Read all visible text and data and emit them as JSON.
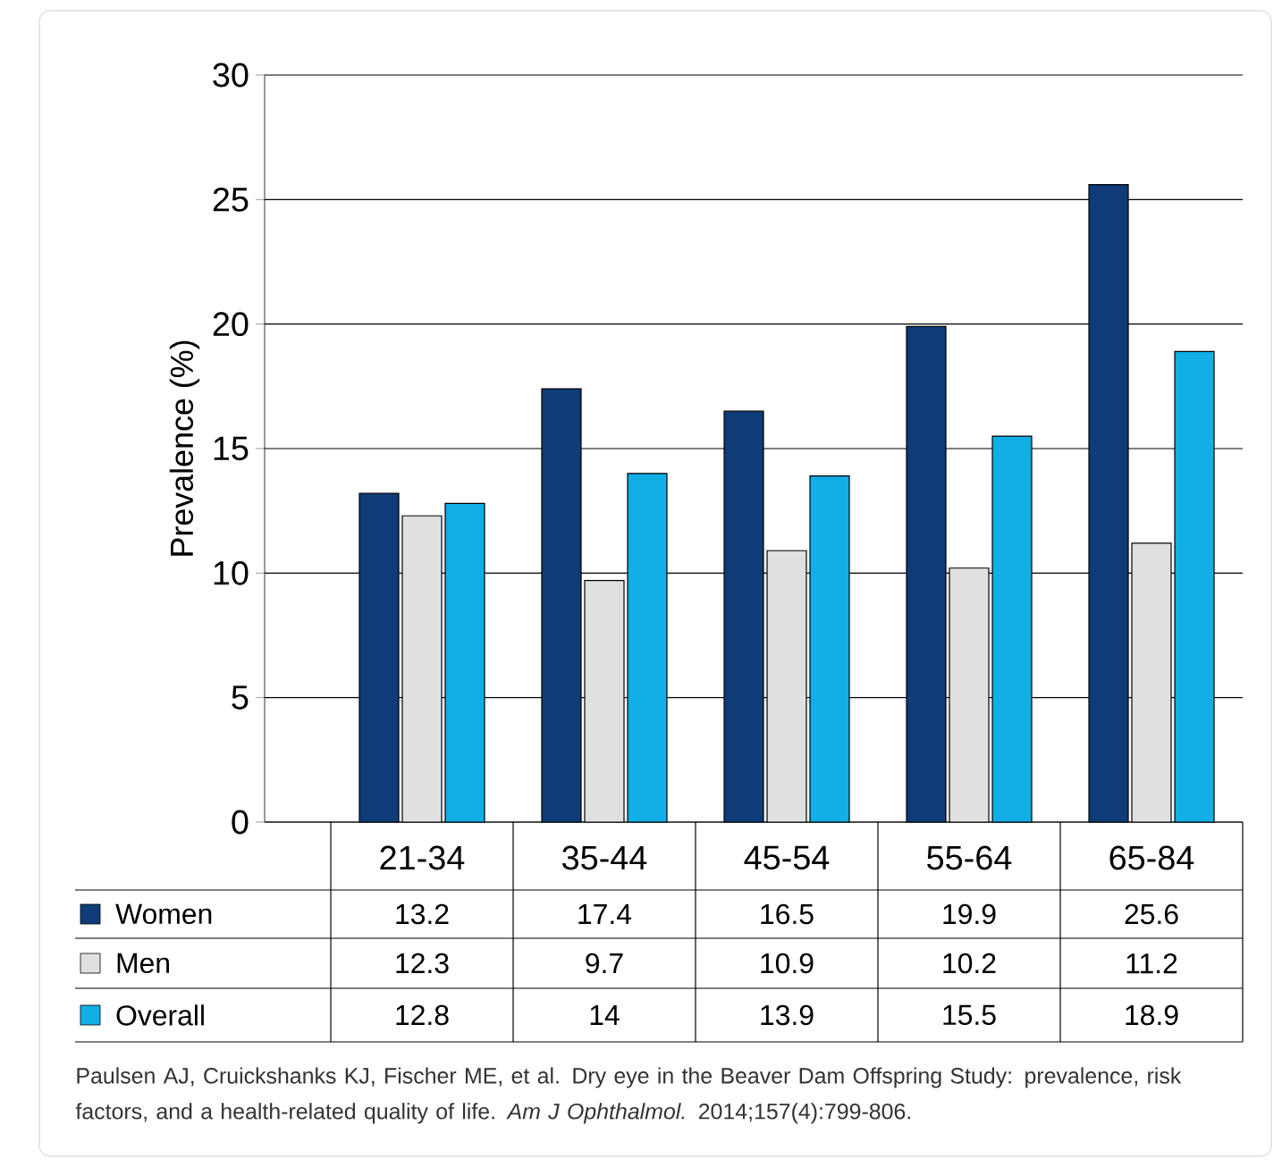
{
  "chart_data": {
    "type": "bar",
    "ylabel": "Prevalence (%)",
    "categories": [
      "21-34",
      "35-44",
      "45-54",
      "55-64",
      "65-84"
    ],
    "series": [
      {
        "name": "Women",
        "color": "#0d3c78",
        "values": [
          13.2,
          17.4,
          16.5,
          19.9,
          25.6
        ]
      },
      {
        "name": "Men",
        "color": "#e0e0e0",
        "values": [
          12.3,
          9.7,
          10.9,
          10.2,
          11.2
        ]
      },
      {
        "name": "Overall",
        "color": "#12aee6",
        "values": [
          12.8,
          14,
          13.9,
          15.5,
          18.9
        ]
      }
    ],
    "ylim": [
      0,
      30
    ],
    "yticks": [
      0,
      5,
      10,
      15,
      20,
      25,
      30
    ],
    "grid": "y",
    "legend": "bottom left",
    "data_labels": true,
    "annotations": [
      "Paulsen AJ, Cruickshanks KJ, Fischer ME, et al. Dry eye in the Beaver Dam Offspring Study: prevalence, risk factors, and a health-related quality of life. *Am J Ophthalmol.* 2014;157(4):799-806."
    ]
  }
}
